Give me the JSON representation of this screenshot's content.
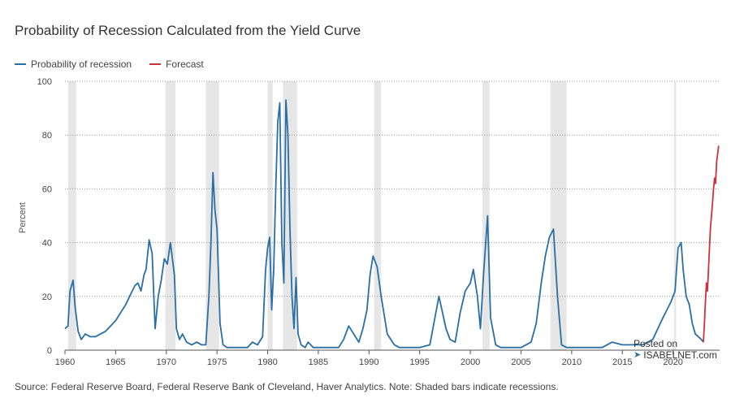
{
  "title": "Probability of Recession Calculated from the Yield Curve",
  "source": "Source: Federal Reserve Board, Federal Reserve Bank of Cleveland, Haver Analytics. Note: Shaded bars indicate recessions.",
  "watermark": {
    "line1": "Posted on",
    "line2": "ISABELNET.com"
  },
  "colors": {
    "probability": "#2a6ea6",
    "forecast": "#d0313c",
    "recession": "#e6e6e6",
    "grid": "#999999"
  },
  "chart_data": {
    "type": "line",
    "title": "Probability of Recession Calculated from the Yield Curve",
    "xlabel": "",
    "ylabel": "Percent",
    "xlim": [
      1960,
      2024.6
    ],
    "ylim": [
      0,
      100
    ],
    "xticks": [
      1960,
      1965,
      1970,
      1975,
      1980,
      1985,
      1990,
      1995,
      2000,
      2005,
      2010,
      2015,
      2020
    ],
    "yticks": [
      0,
      20,
      40,
      60,
      80,
      100
    ],
    "grid": "horizontal dotted",
    "legend_position": "top-left",
    "recessions": [
      [
        1960.3,
        1961.1
      ],
      [
        1969.9,
        1970.9
      ],
      [
        1973.9,
        1975.2
      ],
      [
        1980.0,
        1980.5
      ],
      [
        1981.5,
        1982.9
      ],
      [
        1990.5,
        1991.2
      ],
      [
        2001.2,
        2001.9
      ],
      [
        2007.9,
        2009.5
      ],
      [
        2020.1,
        2020.3
      ]
    ],
    "series": [
      {
        "name": "Probability of recession",
        "x": [
          1960.0,
          1960.3,
          1960.5,
          1960.8,
          1961.0,
          1961.3,
          1961.6,
          1962.0,
          1962.5,
          1963.0,
          1963.5,
          1964.0,
          1964.5,
          1965.0,
          1965.5,
          1966.0,
          1966.5,
          1966.9,
          1967.2,
          1967.5,
          1967.8,
          1968.0,
          1968.3,
          1968.6,
          1968.9,
          1969.2,
          1969.5,
          1969.8,
          1970.1,
          1970.4,
          1970.8,
          1971.0,
          1971.3,
          1971.6,
          1972.0,
          1972.5,
          1973.0,
          1973.5,
          1973.9,
          1974.2,
          1974.4,
          1974.6,
          1974.8,
          1975.0,
          1975.3,
          1975.6,
          1976.0,
          1977.0,
          1978.0,
          1978.5,
          1979.0,
          1979.5,
          1979.8,
          1980.0,
          1980.2,
          1980.4,
          1980.6,
          1980.8,
          1981.0,
          1981.2,
          1981.4,
          1981.6,
          1981.8,
          1982.0,
          1982.2,
          1982.4,
          1982.6,
          1982.8,
          1983.0,
          1983.3,
          1983.7,
          1984.0,
          1984.5,
          1985.0,
          1986.0,
          1987.0,
          1987.5,
          1988.0,
          1988.5,
          1989.0,
          1989.4,
          1989.8,
          1990.1,
          1990.4,
          1990.8,
          1991.2,
          1991.8,
          1992.5,
          1993.0,
          1994.0,
          1995.0,
          1996.0,
          1996.5,
          1996.9,
          1997.2,
          1997.6,
          1998.0,
          1998.5,
          1999.0,
          1999.5,
          2000.0,
          2000.3,
          2000.7,
          2001.0,
          2001.3,
          2001.7,
          2002.0,
          2002.5,
          2003.0,
          2004.0,
          2005.0,
          2006.0,
          2006.5,
          2007.0,
          2007.4,
          2007.8,
          2008.2,
          2008.6,
          2009.0,
          2009.5,
          2010.0,
          2011.0,
          2012.0,
          2013.0,
          2014.0,
          2015.0,
          2016.0,
          2017.0,
          2018.0,
          2018.5,
          2019.0,
          2019.4,
          2019.8,
          2020.2,
          2020.5,
          2020.8,
          2021.0,
          2021.3,
          2021.6,
          2021.9,
          2022.2,
          2022.5,
          2022.8,
          2023.0
        ],
        "y": [
          8,
          9,
          22,
          26,
          16,
          7,
          4,
          6,
          5,
          5,
          6,
          7,
          9,
          11,
          14,
          17,
          21,
          24,
          25,
          22,
          28,
          30,
          41,
          36,
          8,
          20,
          26,
          34,
          32,
          40,
          28,
          8,
          4,
          6,
          3,
          2,
          3,
          2,
          2,
          20,
          40,
          66,
          52,
          45,
          10,
          2,
          1,
          1,
          1,
          3,
          2,
          5,
          30,
          38,
          42,
          15,
          30,
          60,
          85,
          92,
          40,
          25,
          93,
          80,
          45,
          20,
          8,
          27,
          6,
          2,
          1,
          3,
          1,
          1,
          1,
          1,
          4,
          9,
          6,
          3,
          8,
          15,
          28,
          35,
          31,
          20,
          6,
          2,
          1,
          1,
          1,
          2,
          12,
          20,
          15,
          8,
          4,
          3,
          14,
          22,
          25,
          30,
          20,
          8,
          28,
          50,
          12,
          2,
          1,
          1,
          1,
          3,
          10,
          25,
          35,
          42,
          45,
          20,
          2,
          1,
          1,
          1,
          1,
          1,
          3,
          2,
          2,
          2,
          4,
          8,
          12,
          15,
          18,
          22,
          38,
          40,
          30,
          20,
          17,
          10,
          6,
          5,
          4,
          3
        ]
      },
      {
        "name": "Forecast",
        "x": [
          2023.0,
          2023.1,
          2023.2,
          2023.3,
          2023.4,
          2023.5,
          2023.6,
          2023.7,
          2023.8,
          2023.9,
          2024.0,
          2024.1,
          2024.2,
          2024.3,
          2024.5
        ],
        "y": [
          3,
          10,
          18,
          25,
          22,
          30,
          38,
          46,
          50,
          55,
          60,
          64,
          62,
          70,
          76
        ]
      }
    ]
  }
}
